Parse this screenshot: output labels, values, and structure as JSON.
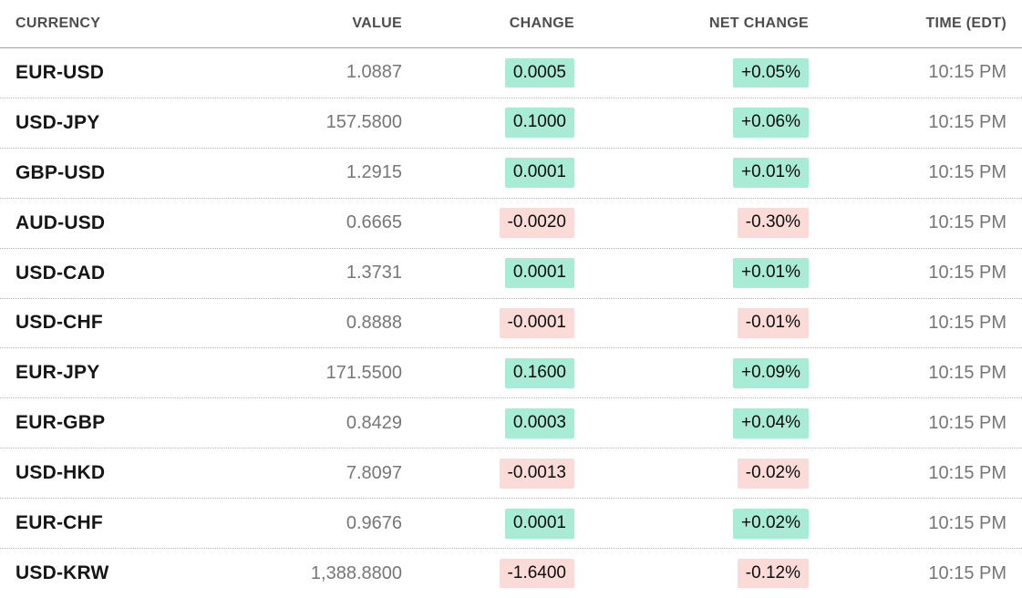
{
  "colors": {
    "green": "#a9ecd6",
    "pink": "#fadbd8"
  },
  "table": {
    "columns": [
      {
        "label": "CURRENCY"
      },
      {
        "label": "VALUE"
      },
      {
        "label": "CHANGE"
      },
      {
        "label": "NET CHANGE"
      },
      {
        "label": "TIME (EDT)"
      }
    ],
    "rows": [
      {
        "currency": "EUR-USD",
        "value": "1.0887",
        "change": "0.0005",
        "change_dir": "up",
        "net_change": "+0.05%",
        "net_change_dir": "up",
        "time": "10:15 PM"
      },
      {
        "currency": "USD-JPY",
        "value": "157.5800",
        "change": "0.1000",
        "change_dir": "up",
        "net_change": "+0.06%",
        "net_change_dir": "up",
        "time": "10:15 PM"
      },
      {
        "currency": "GBP-USD",
        "value": "1.2915",
        "change": "0.0001",
        "change_dir": "up",
        "net_change": "+0.01%",
        "net_change_dir": "up",
        "time": "10:15 PM"
      },
      {
        "currency": "AUD-USD",
        "value": "0.6665",
        "change": "-0.0020",
        "change_dir": "down",
        "net_change": "-0.30%",
        "net_change_dir": "down",
        "time": "10:15 PM"
      },
      {
        "currency": "USD-CAD",
        "value": "1.3731",
        "change": "0.0001",
        "change_dir": "up",
        "net_change": "+0.01%",
        "net_change_dir": "up",
        "time": "10:15 PM"
      },
      {
        "currency": "USD-CHF",
        "value": "0.8888",
        "change": "-0.0001",
        "change_dir": "down",
        "net_change": "-0.01%",
        "net_change_dir": "down",
        "time": "10:15 PM"
      },
      {
        "currency": "EUR-JPY",
        "value": "171.5500",
        "change": "0.1600",
        "change_dir": "up",
        "net_change": "+0.09%",
        "net_change_dir": "up",
        "time": "10:15 PM"
      },
      {
        "currency": "EUR-GBP",
        "value": "0.8429",
        "change": "0.0003",
        "change_dir": "up",
        "net_change": "+0.04%",
        "net_change_dir": "up",
        "time": "10:15 PM"
      },
      {
        "currency": "USD-HKD",
        "value": "7.8097",
        "change": "-0.0013",
        "change_dir": "down",
        "net_change": "-0.02%",
        "net_change_dir": "down",
        "time": "10:15 PM"
      },
      {
        "currency": "EUR-CHF",
        "value": "0.9676",
        "change": "0.0001",
        "change_dir": "up",
        "net_change": "+0.02%",
        "net_change_dir": "up",
        "time": "10:15 PM"
      },
      {
        "currency": "USD-KRW",
        "value": "1,388.8800",
        "change": "-1.6400",
        "change_dir": "down",
        "net_change": "-0.12%",
        "net_change_dir": "down",
        "time": "10:15 PM"
      }
    ]
  }
}
